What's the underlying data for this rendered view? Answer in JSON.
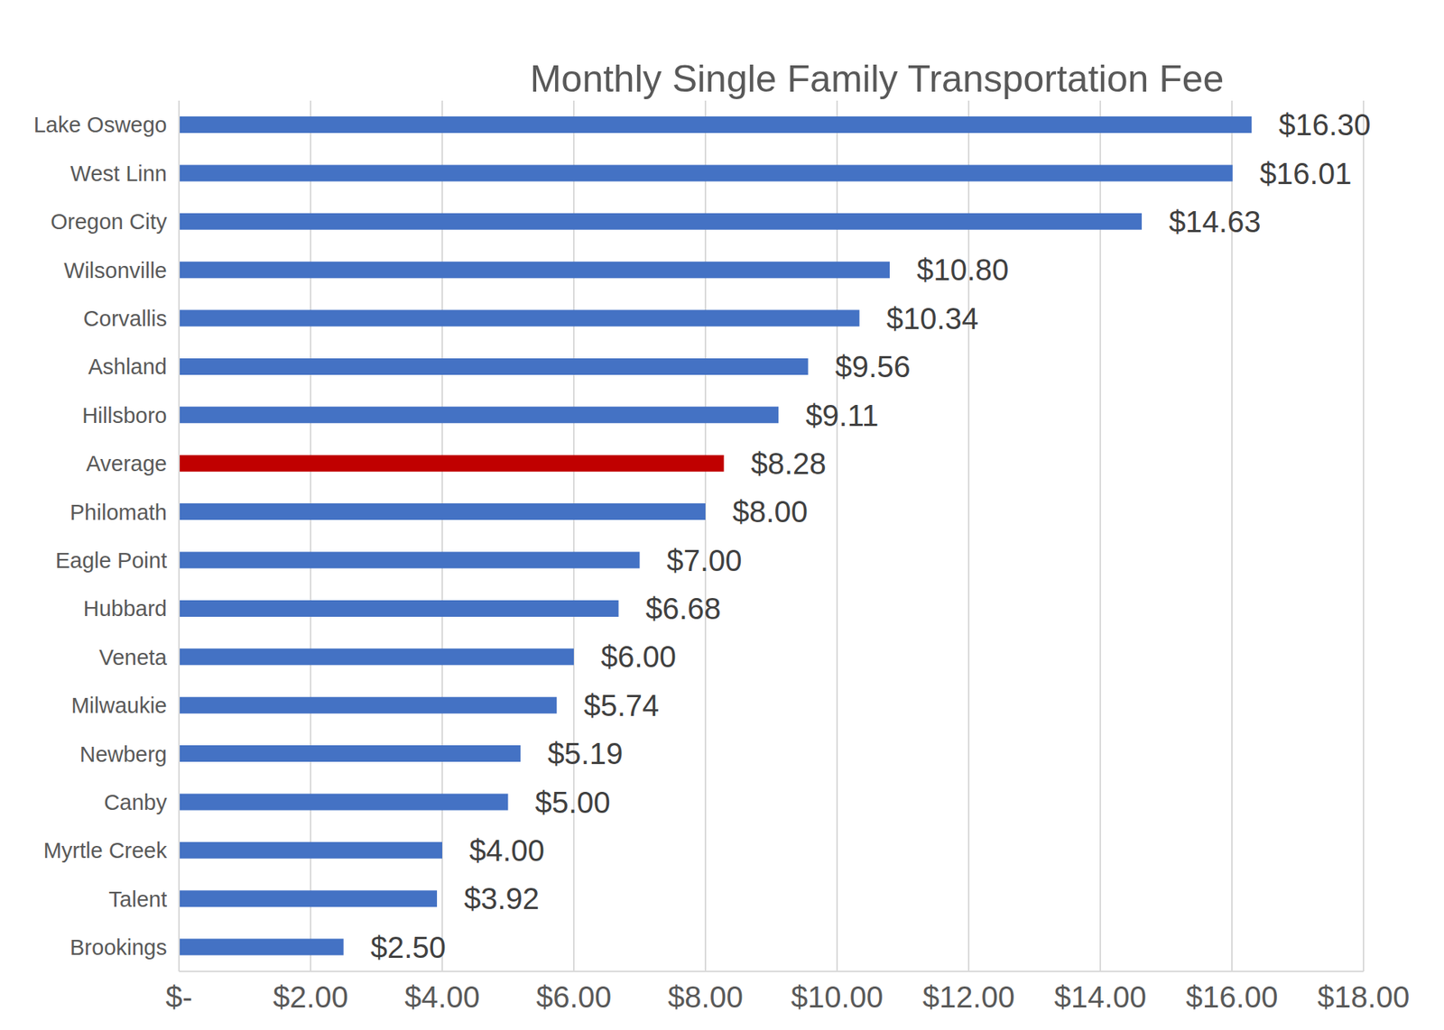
{
  "chart_data": {
    "type": "bar",
    "orientation": "horizontal",
    "title": "Monthly Single Family Transportation Fee",
    "categories": [
      "Lake Oswego",
      "West Linn",
      "Oregon City",
      "Wilsonville",
      "Corvallis",
      "Ashland",
      "Hillsboro",
      "Average",
      "Philomath",
      "Eagle Point",
      "Hubbard",
      "Veneta",
      "Milwaukie",
      "Newberg",
      "Canby",
      "Myrtle Creek",
      "Talent",
      "Brookings"
    ],
    "values": [
      16.3,
      16.01,
      14.63,
      10.8,
      10.34,
      9.56,
      9.11,
      8.28,
      8.0,
      7.0,
      6.68,
      6.0,
      5.74,
      5.19,
      5.0,
      4.0,
      3.92,
      2.5
    ],
    "value_labels": [
      "$16.30",
      "$16.01",
      "$14.63",
      "$10.80",
      "$10.34",
      "$9.56",
      "$9.11",
      "$8.28",
      "$8.00",
      "$7.00",
      "$6.68",
      "$6.00",
      "$5.74",
      "$5.19",
      "$5.00",
      "$4.00",
      "$3.92",
      "$2.50"
    ],
    "colors": [
      "#4472c4",
      "#4472c4",
      "#4472c4",
      "#4472c4",
      "#4472c4",
      "#4472c4",
      "#4472c4",
      "#c00000",
      "#4472c4",
      "#4472c4",
      "#4472c4",
      "#4472c4",
      "#4472c4",
      "#4472c4",
      "#4472c4",
      "#4472c4",
      "#4472c4",
      "#4472c4"
    ],
    "xlim": [
      0,
      18
    ],
    "xticks": [
      {
        "value": 0,
        "label": "$-"
      },
      {
        "value": 2,
        "label": "$2.00"
      },
      {
        "value": 4,
        "label": "$4.00"
      },
      {
        "value": 6,
        "label": "$6.00"
      },
      {
        "value": 8,
        "label": "$8.00"
      },
      {
        "value": 10,
        "label": "$10.00"
      },
      {
        "value": 12,
        "label": "$12.00"
      },
      {
        "value": 14,
        "label": "$14.00"
      },
      {
        "value": 16,
        "label": "$16.00"
      },
      {
        "value": 18,
        "label": "$18.00"
      }
    ],
    "grid": true,
    "data_labels": true
  }
}
